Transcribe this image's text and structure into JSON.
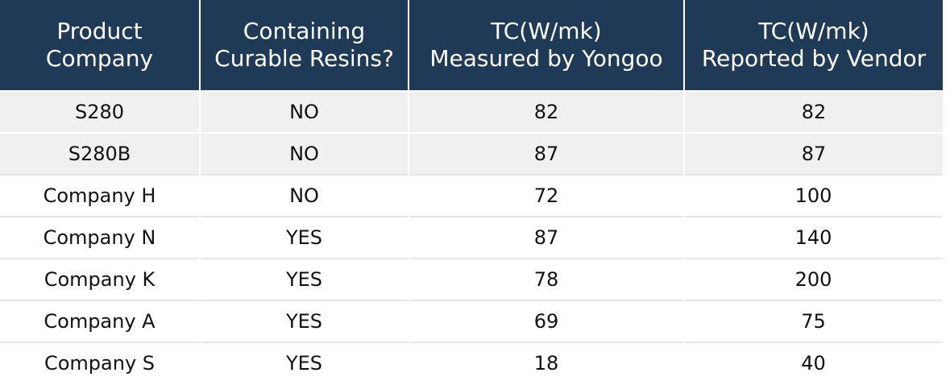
{
  "headers": [
    [
      "Product",
      "Company"
    ],
    [
      "Containing",
      "Curable Resins?"
    ],
    [
      "TC(W/mk)",
      "Measured by Yongoo"
    ],
    [
      "TC(W/mk)",
      "Reported by Vendor"
    ]
  ],
  "rows": [
    [
      "S280",
      "NO",
      "82",
      "82"
    ],
    [
      "S280B",
      "NO",
      "87",
      "87"
    ],
    [
      "Company H",
      "NO",
      "72",
      "100"
    ],
    [
      "Company N",
      "YES",
      "87",
      "140"
    ],
    [
      "Company K",
      "YES",
      "78",
      "200"
    ],
    [
      "Company A",
      "YES",
      "69",
      "75"
    ],
    [
      "Company S",
      "YES",
      "18",
      "40"
    ]
  ],
  "colors": {
    "header_bg": "#1f3a56",
    "header_text": "#ffffff",
    "row_shaded": "#f0f0f0",
    "row_plain": "#ffffff"
  }
}
